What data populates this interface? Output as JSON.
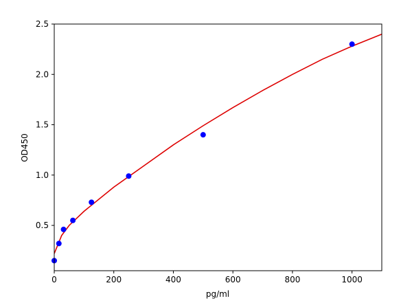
{
  "chart_data": {
    "type": "scatter",
    "xlabel": "pg/ml",
    "ylabel": "OD450",
    "xlim": [
      0,
      1100
    ],
    "ylim": [
      0.05,
      2.5
    ],
    "xticks": [
      0,
      200,
      400,
      600,
      800,
      1000
    ],
    "xtick_labels": [
      "0",
      "200",
      "400",
      "600",
      "800",
      "1000"
    ],
    "yticks": [
      0.5,
      1.0,
      1.5,
      2.0,
      2.5
    ],
    "ytick_labels": [
      "0.5",
      "1.0",
      "1.5",
      "2.0",
      "2.5"
    ],
    "grid": false,
    "points": {
      "color": "#0000ff",
      "x": [
        0,
        15.6,
        31.25,
        62.5,
        125,
        250,
        500,
        1000
      ],
      "y": [
        0.15,
        0.32,
        0.46,
        0.55,
        0.73,
        0.99,
        1.4,
        2.3
      ]
    },
    "fit_curve": {
      "color": "#dd0000",
      "x": [
        0,
        25,
        50,
        100,
        200,
        300,
        400,
        500,
        600,
        700,
        800,
        900,
        1000,
        1100
      ],
      "y": [
        0.22,
        0.4,
        0.5,
        0.64,
        0.88,
        1.09,
        1.3,
        1.49,
        1.67,
        1.84,
        2.0,
        2.15,
        2.28,
        2.4
      ]
    }
  }
}
